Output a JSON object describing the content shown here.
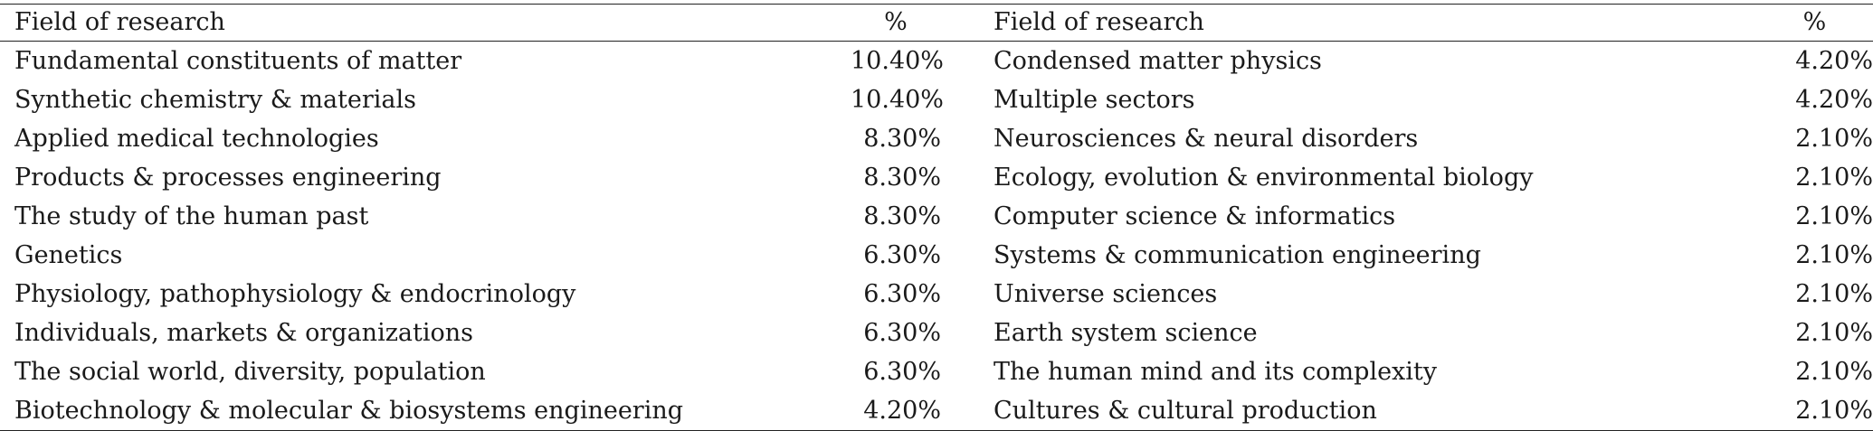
{
  "headers": {
    "field_left": "Field of research",
    "pct_left": "%",
    "field_right": "Field of research",
    "pct_right": "%"
  },
  "rows": [
    {
      "field_left": "Fundamental constituents of matter",
      "pct_left": "10.40%",
      "field_right": "Condensed matter physics",
      "pct_right": "4.20%"
    },
    {
      "field_left": "Synthetic chemistry & materials",
      "pct_left": "10.40%",
      "field_right": "Multiple sectors",
      "pct_right": "4.20%"
    },
    {
      "field_left": "Applied medical technologies",
      "pct_left": "8.30%",
      "field_right": "Neurosciences & neural disorders",
      "pct_right": "2.10%"
    },
    {
      "field_left": "Products & processes engineering",
      "pct_left": "8.30%",
      "field_right": "Ecology, evolution & environmental biology",
      "pct_right": "2.10%"
    },
    {
      "field_left": "The study of the human past",
      "pct_left": "8.30%",
      "field_right": "Computer science & informatics",
      "pct_right": "2.10%"
    },
    {
      "field_left": "Genetics",
      "pct_left": "6.30%",
      "field_right": "Systems & communication engineering",
      "pct_right": "2.10%"
    },
    {
      "field_left": "Physiology, pathophysiology & endocrinology",
      "pct_left": "6.30%",
      "field_right": "Universe sciences",
      "pct_right": "2.10%"
    },
    {
      "field_left": "Individuals, markets & organizations",
      "pct_left": "6.30%",
      "field_right": "Earth system science",
      "pct_right": "2.10%"
    },
    {
      "field_left": "The social world, diversity, population",
      "pct_left": "6.30%",
      "field_right": "The human mind and its complexity",
      "pct_right": "2.10%"
    },
    {
      "field_left": "Biotechnology & molecular & biosystems engineering",
      "pct_left": "4.20%",
      "field_right": "Cultures & cultural production",
      "pct_right": "2.10%"
    }
  ]
}
